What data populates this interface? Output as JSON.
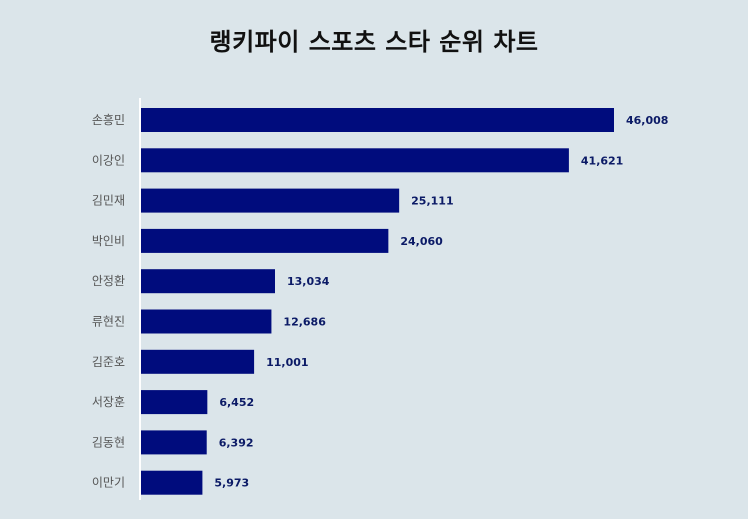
{
  "title": "랭키파이 스포츠 스타 순위 차트",
  "colors": {
    "bar": "#000c7d",
    "background": "#dbe5ea",
    "value_text": "#0b1a66",
    "axis": "#ffffff"
  },
  "chart_data": {
    "type": "bar",
    "orientation": "horizontal",
    "title": "랭키파이 스포츠 스타 순위 차트",
    "xlabel": "",
    "ylabel": "",
    "categories": [
      "손흥민",
      "이강인",
      "김민재",
      "박인비",
      "안정환",
      "류현진",
      "김준호",
      "서장훈",
      "김동현",
      "이만기"
    ],
    "values": [
      46008,
      41621,
      25111,
      24060,
      13034,
      12686,
      11001,
      6452,
      6392,
      5973
    ],
    "value_labels": [
      "46,008",
      "41,621",
      "25,111",
      "24,060",
      "13,034",
      "12,686",
      "11,001",
      "6,452",
      "6,392",
      "5,973"
    ],
    "xlim": [
      0,
      52000
    ],
    "grid": false,
    "legend": "none"
  }
}
